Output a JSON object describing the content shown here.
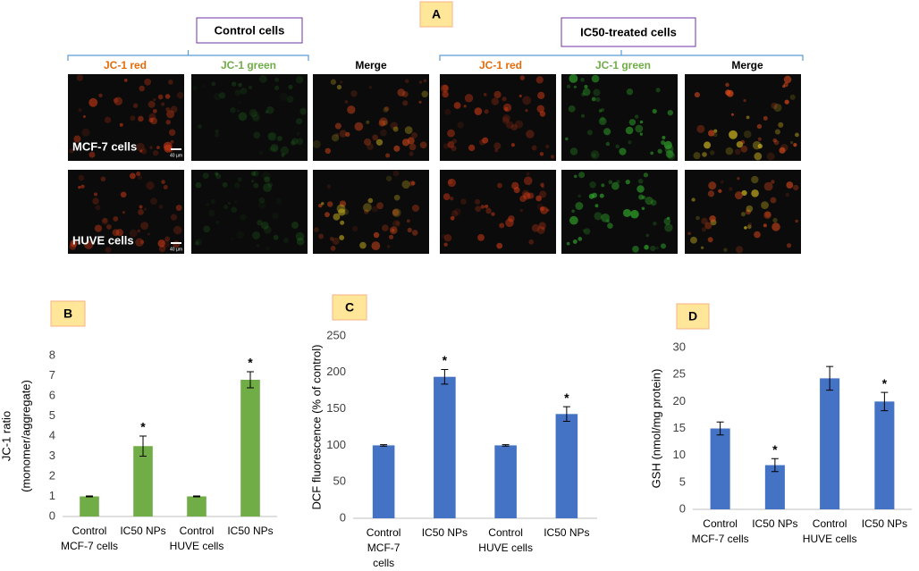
{
  "panel_a": {
    "label": "A",
    "groups": [
      {
        "title": "Control cells",
        "columns": [
          "JC-1 red",
          "JC-1 green",
          "Merge"
        ]
      },
      {
        "title": "IC50-treated cells",
        "columns": [
          "JC-1 red",
          "JC-1 green",
          "Merge"
        ]
      }
    ],
    "rows": [
      "MCF-7 cells",
      "HUVE cells"
    ],
    "scale_bar": "40 µm"
  },
  "chart_data": [
    {
      "type": "bar",
      "panel": "B",
      "ylabel": [
        "JC-1 ratio",
        "(monomer/aggregate)"
      ],
      "categories": [
        [
          "Control",
          "MCF-7 cells"
        ],
        [
          "IC50 NPs"
        ],
        [
          "Control",
          "HUVE cells"
        ],
        [
          "IC50 NPs"
        ]
      ],
      "values": [
        1.0,
        3.5,
        1.0,
        6.8
      ],
      "errors": [
        0.02,
        0.5,
        0.02,
        0.4
      ],
      "markers": [
        null,
        "*",
        null,
        "*"
      ],
      "color": "#70ad47",
      "ylim": [
        0,
        8
      ],
      "yticks": [
        0,
        1,
        2,
        3,
        4,
        5,
        6,
        7,
        8
      ]
    },
    {
      "type": "bar",
      "panel": "C",
      "ylabel": [
        "DCF fluorescence (% of control)"
      ],
      "categories": [
        [
          "Control",
          "MCF-7",
          "cells"
        ],
        [
          "IC50 NPs"
        ],
        [
          "Control",
          "HUVE cells"
        ],
        [
          "IC50 NPs"
        ]
      ],
      "values": [
        100,
        194,
        100,
        143
      ],
      "errors": [
        1,
        10,
        1,
        10
      ],
      "markers": [
        null,
        "*",
        null,
        "*"
      ],
      "color": "#4472c4",
      "ylim": [
        0,
        250
      ],
      "yticks": [
        0,
        50,
        100,
        150,
        200,
        250
      ]
    },
    {
      "type": "bar",
      "panel": "D",
      "ylabel": [
        "GSH (nmol/mg protein)"
      ],
      "categories": [
        [
          "Control",
          "MCF-7 cells"
        ],
        [
          "IC50 NPs"
        ],
        [
          "Control",
          "HUVE cells"
        ],
        [
          "IC50 NPs"
        ]
      ],
      "values": [
        15,
        8.2,
        24.3,
        20
      ],
      "errors": [
        1.2,
        1.2,
        2.2,
        1.7
      ],
      "markers": [
        null,
        "*",
        null,
        "*"
      ],
      "color": "#4472c4",
      "ylim": [
        0,
        30
      ],
      "yticks": [
        0,
        5,
        10,
        15,
        20,
        25,
        30
      ]
    }
  ]
}
